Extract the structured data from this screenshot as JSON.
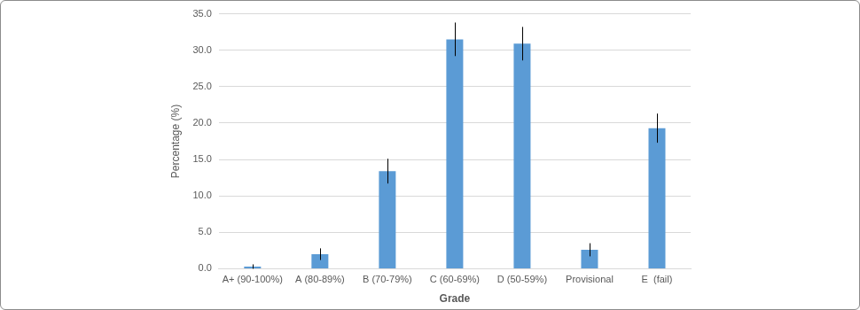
{
  "chart_data": {
    "type": "bar",
    "x_label": "Grade",
    "y_label": "Percentage (%)",
    "categories": [
      "A+ (90-100%)",
      "A (80-89%)",
      "B (70-79%)",
      "C (60-69%)",
      "D (50-59%)",
      "Provisional",
      "E  (fail)"
    ],
    "values": [
      0.3,
      2.0,
      13.4,
      31.5,
      30.9,
      2.6,
      19.3
    ],
    "errors": [
      0.3,
      0.8,
      1.7,
      2.3,
      2.3,
      0.9,
      2.0
    ],
    "color": "#5b9bd5",
    "ylim": [
      0,
      35
    ],
    "yticks": [
      {
        "value": 0,
        "label": "0.0"
      },
      {
        "value": 5,
        "label": "5.0"
      },
      {
        "value": 10,
        "label": "10.0"
      },
      {
        "value": 15,
        "label": "15.0"
      },
      {
        "value": 20,
        "label": "20.0"
      },
      {
        "value": 25,
        "label": "25.0"
      },
      {
        "value": 30,
        "label": "30.0"
      },
      {
        "value": 35,
        "label": "35.0"
      }
    ],
    "grid": true
  }
}
